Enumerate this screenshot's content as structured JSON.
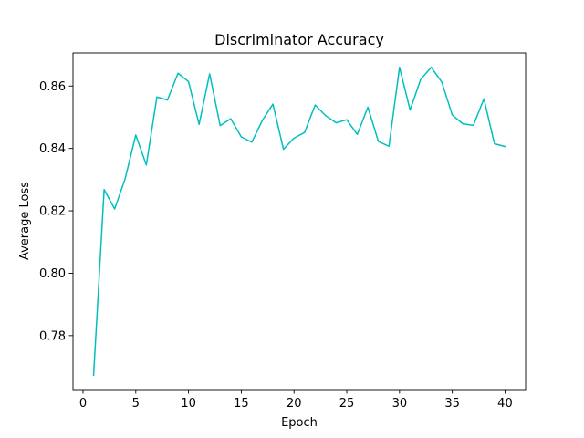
{
  "chart_data": {
    "type": "line",
    "title": "Discriminator Accuracy",
    "xlabel": "Epoch",
    "ylabel": "Average Loss",
    "xlim": [
      -0.95,
      41.95
    ],
    "ylim": [
      0.7627,
      0.8706
    ],
    "xticks": [
      0,
      5,
      10,
      15,
      20,
      25,
      30,
      35,
      40
    ],
    "yticks": [
      0.78,
      0.8,
      0.82,
      0.84,
      0.86
    ],
    "ytick_labels": [
      "0.78",
      "0.80",
      "0.82",
      "0.84",
      "0.86"
    ],
    "grid": false,
    "legend": "none",
    "line_color": "#00bfbf",
    "series": [
      {
        "x": [
          1,
          2,
          3,
          4,
          5,
          6,
          7,
          8,
          9,
          10,
          11,
          12,
          13,
          14,
          15,
          16,
          17,
          18,
          19,
          20,
          21,
          22,
          23,
          24,
          25,
          26,
          27,
          28,
          29,
          30,
          31,
          32,
          33,
          34,
          35,
          36,
          37,
          38,
          39,
          40
        ],
        "values": [
          0.7673,
          0.8268,
          0.8206,
          0.8304,
          0.8443,
          0.8347,
          0.8565,
          0.8555,
          0.8641,
          0.8614,
          0.8477,
          0.8639,
          0.8473,
          0.8495,
          0.8437,
          0.842,
          0.849,
          0.8542,
          0.8397,
          0.8433,
          0.8451,
          0.8539,
          0.8505,
          0.8482,
          0.8492,
          0.8445,
          0.8532,
          0.8422,
          0.8407,
          0.866,
          0.8523,
          0.8621,
          0.866,
          0.8613,
          0.8507,
          0.8479,
          0.8474,
          0.8559,
          0.8415,
          0.8406
        ]
      }
    ]
  }
}
